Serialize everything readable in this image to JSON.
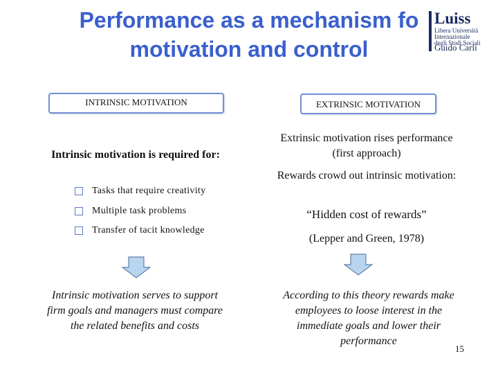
{
  "slide": {
    "title_line1": "Performance as a mechanism fo",
    "title_line2": "motivation and control",
    "page_number": "15"
  },
  "logo": {
    "name": "Luiss",
    "line1": "Libera Università",
    "line2": "Internazionale",
    "line3": "degli Studi Sociali",
    "line4": "Guido Carli"
  },
  "left": {
    "box_label": "INTRINSIC MOTIVATION",
    "heading": "Intrinsic motivation is required for:",
    "bullets": [
      "Tasks that require creativity",
      "Multiple task problems",
      "Transfer of tacit knowledge"
    ],
    "conclusion": "Intrinsic motivation serves to support firm goals and managers must compare the related benefits and costs"
  },
  "right": {
    "box_label": "EXTRINSIC MOTIVATION",
    "line1": "Extrinsic motivation rises performance (first approach)",
    "line2": "Rewards crowd out intrinsic motivation:",
    "line3": "“Hidden cost of rewards”",
    "line4": "(Lepper and Green, 1978)",
    "conclusion": "According to this theory rewards make employees to loose interest in the immediate goals and lower their performance"
  },
  "colors": {
    "title": "#3a5fcd",
    "box_border": "#6f8fcf",
    "arrow_fill": "#b8d4ee",
    "logo": "#1a2a5e"
  }
}
